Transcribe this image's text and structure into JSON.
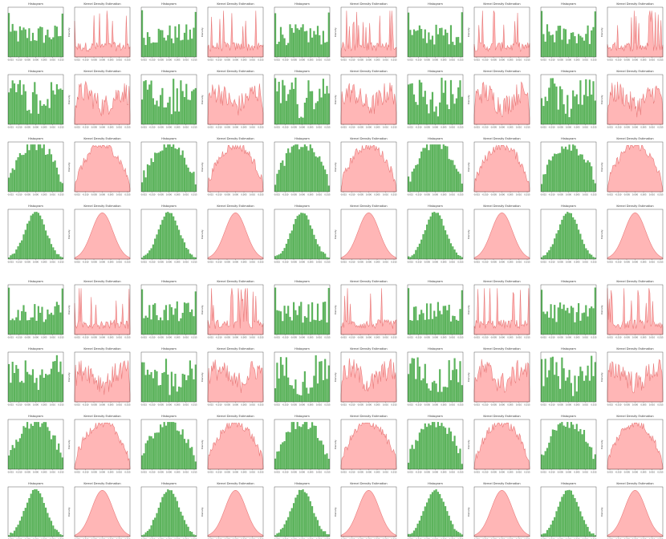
{
  "colors": {
    "hist": "#5cb35c",
    "kde_fill": "#ffb6b6",
    "kde_line": "#e87a7a",
    "axis": "#333333"
  },
  "labels": {
    "hist_title": "Histogram",
    "kde_title": "Kernel Density Estimation",
    "kde_ylabel": "Density"
  },
  "x_ticks": [
    "-0.015",
    "-0.010",
    "-0.005",
    "0.000",
    "0.005",
    "0.010",
    "0.015"
  ],
  "layout": {
    "rows": 8,
    "cols": 10,
    "row_types": [
      "u",
      "m",
      "b",
      "g",
      "u",
      "m",
      "b",
      "g"
    ]
  },
  "chart_data": [
    {
      "type": "bar",
      "title": "Histogram",
      "panel": "row1-col1",
      "pattern": "uniform-with-edge-spikes"
    },
    {
      "type": "area",
      "title": "Kernel Density Estimation",
      "panel": "row1-col2",
      "ylabel": "Density",
      "pattern": "multi-peak"
    },
    {
      "type": "bar",
      "title": "Histogram",
      "panel": "row3-col1",
      "pattern": "bell-rough"
    },
    {
      "type": "area",
      "title": "Kernel Density Estimation",
      "panel": "row3-col2",
      "ylabel": "Density",
      "pattern": "bell-rough"
    },
    {
      "type": "bar",
      "title": "Histogram",
      "panel": "row4-col1",
      "pattern": "gaussian"
    },
    {
      "type": "area",
      "title": "Kernel Density Estimation",
      "panel": "row4-col2",
      "ylabel": "Density",
      "pattern": "gaussian"
    }
  ]
}
